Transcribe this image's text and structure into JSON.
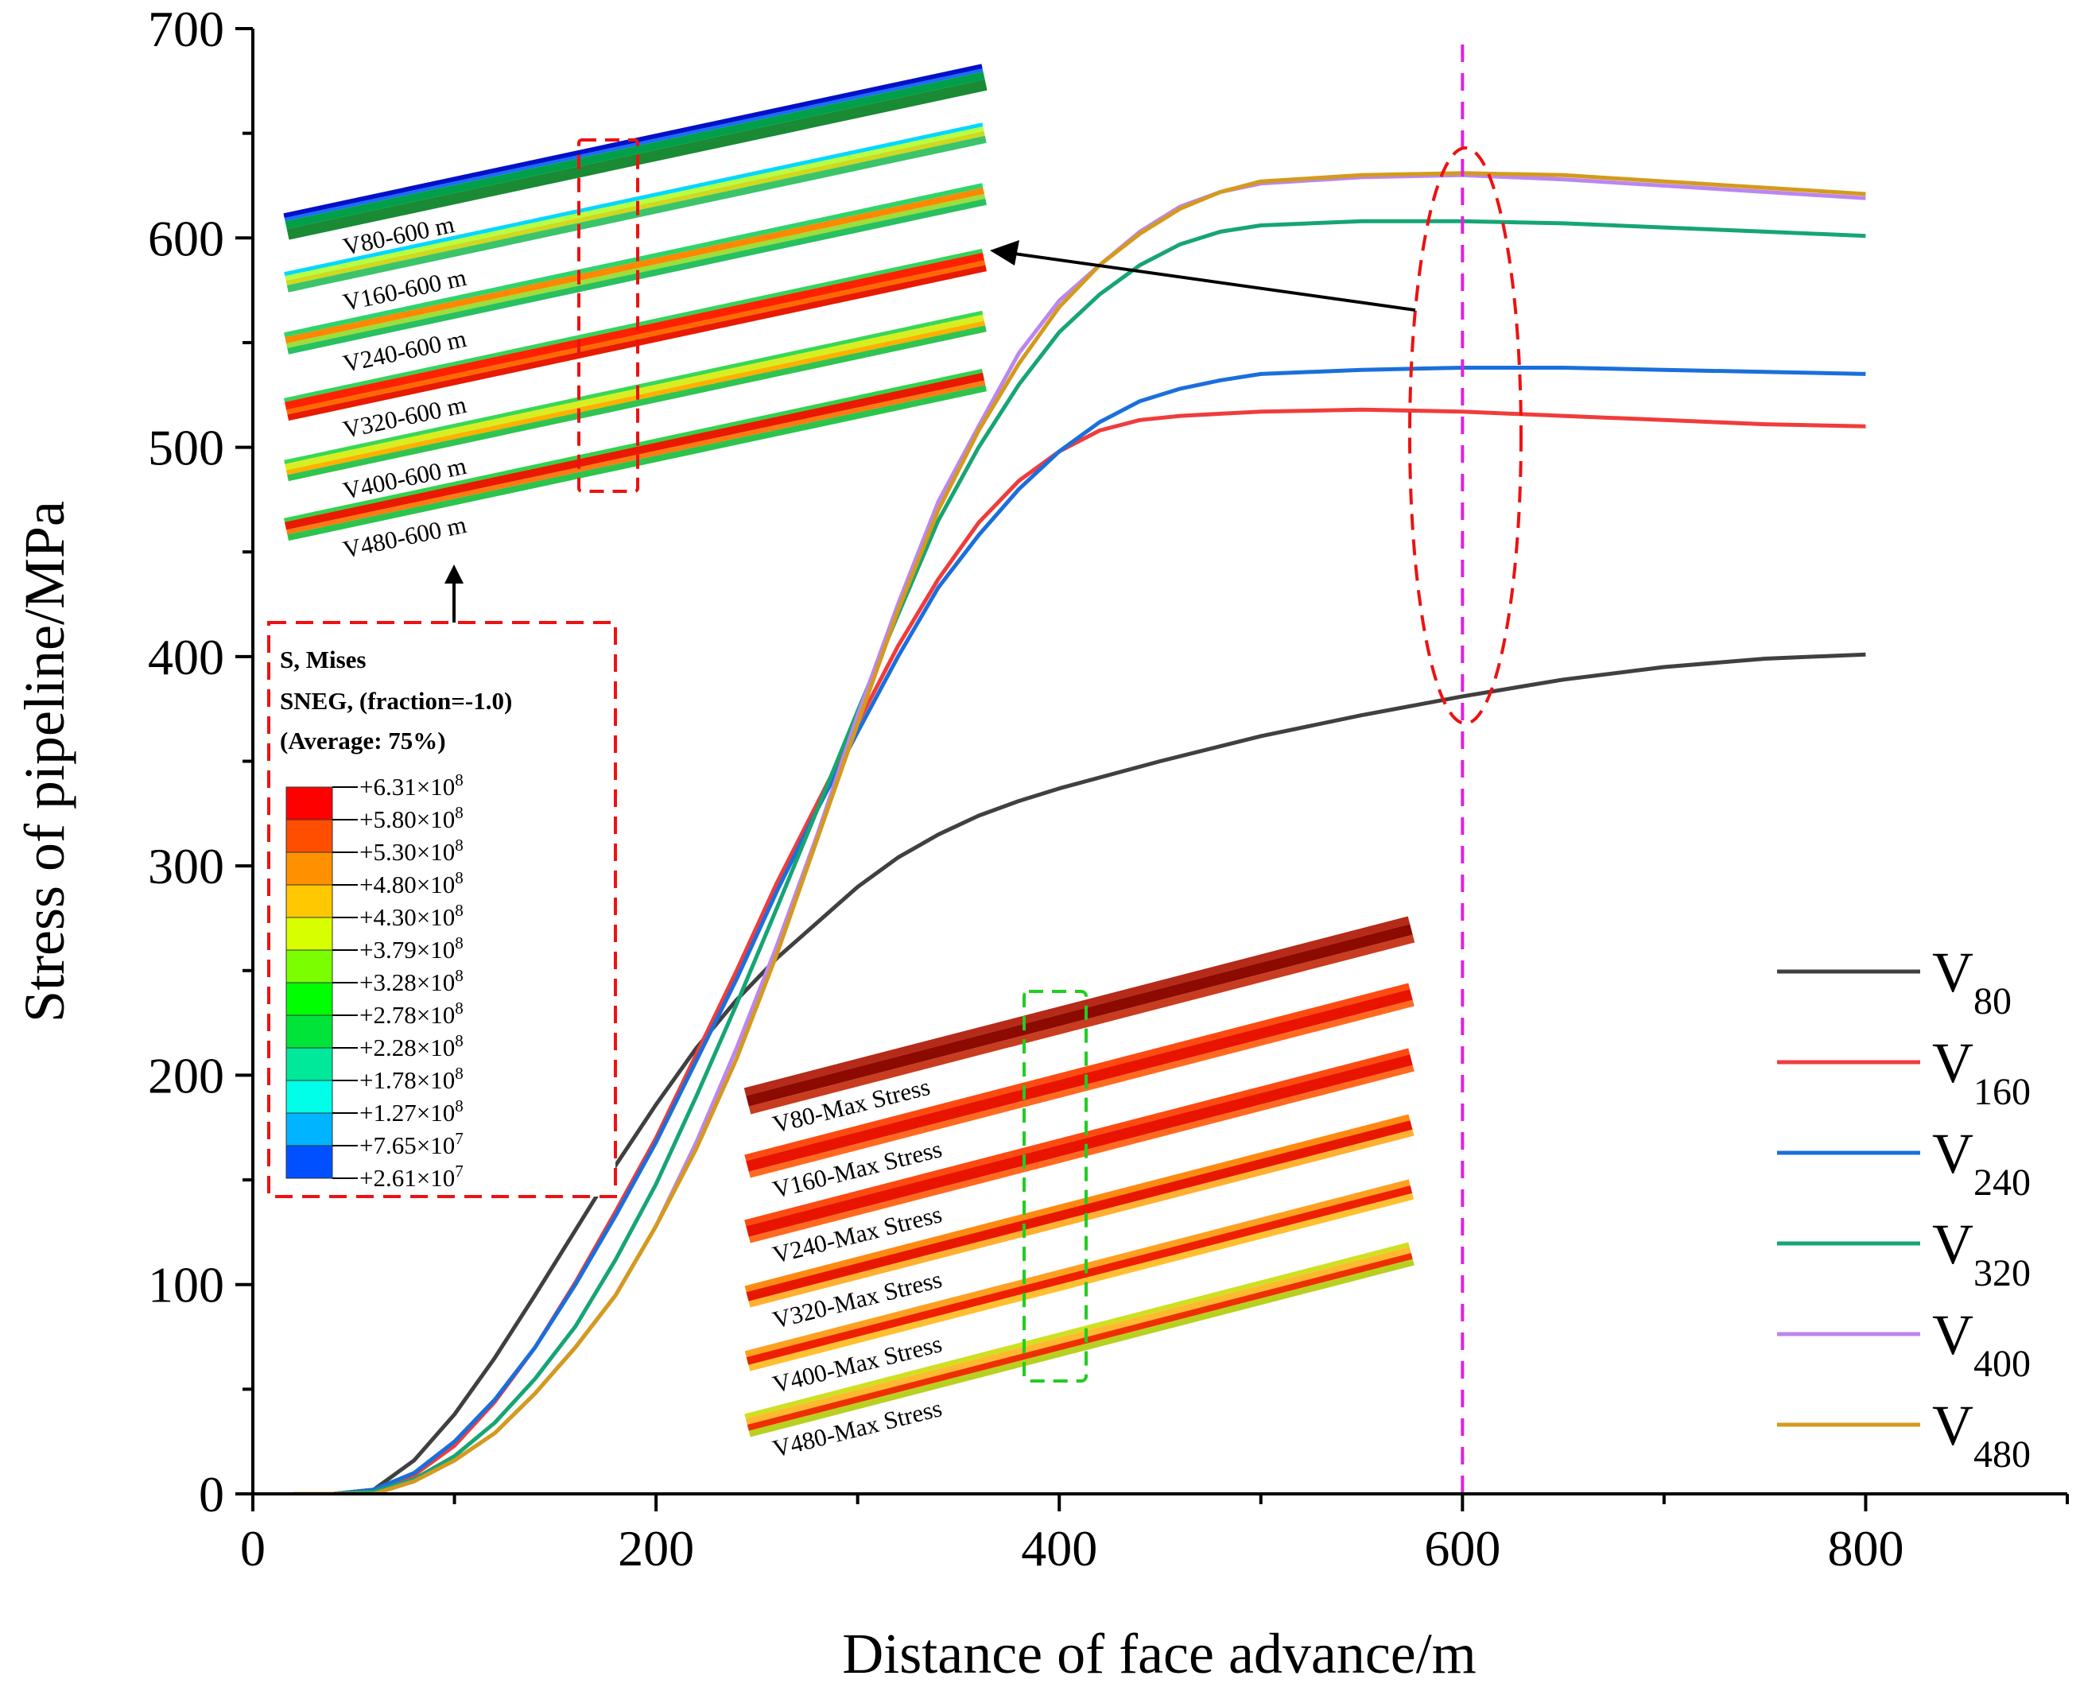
{
  "colors": {
    "v80": "#404040",
    "v160": "#f03c3c",
    "v240": "#1a6fdc",
    "v320": "#16a574",
    "v400": "#bb86f0",
    "v480": "#d49a1c",
    "marker": "#e020e0",
    "red_box": "#ee1111",
    "green_box": "#22cc22"
  },
  "chart_data": {
    "type": "line",
    "xlabel": "Distance of face advance/m",
    "ylabel": "Stress of pipeline/MPa",
    "xlim": [
      0,
      900
    ],
    "ylim": [
      0,
      700
    ],
    "x_ticks": [
      "0",
      "200",
      "400",
      "600",
      "800"
    ],
    "y_ticks": [
      "0",
      "100",
      "200",
      "300",
      "400",
      "500",
      "600",
      "700"
    ],
    "vertical_marker_x": 600,
    "series": [
      {
        "name": "V80",
        "base": "V",
        "sub": "80",
        "key": "v80",
        "x": [
          20,
          40,
          60,
          80,
          100,
          120,
          140,
          160,
          180,
          200,
          220,
          240,
          260,
          280,
          300,
          320,
          340,
          360,
          380,
          400,
          450,
          500,
          550,
          600,
          650,
          700,
          750,
          800
        ],
        "y": [
          0,
          0,
          2,
          16,
          38,
          65,
          95,
          126,
          157,
          186,
          213,
          236,
          256,
          273,
          290,
          304,
          315,
          324,
          331,
          337,
          350,
          362,
          372,
          381,
          389,
          395,
          399,
          401
        ]
      },
      {
        "name": "V160",
        "base": "V",
        "sub": "160",
        "key": "v160",
        "x": [
          20,
          40,
          60,
          80,
          100,
          120,
          140,
          160,
          180,
          200,
          220,
          240,
          260,
          280,
          300,
          320,
          340,
          360,
          380,
          400,
          420,
          440,
          460,
          480,
          500,
          550,
          600,
          650,
          700,
          750,
          800
        ],
        "y": [
          0,
          0,
          2,
          9,
          23,
          44,
          70,
          101,
          135,
          170,
          210,
          250,
          292,
          330,
          368,
          405,
          437,
          464,
          484,
          498,
          508,
          513,
          515,
          516,
          517,
          518,
          517,
          515,
          513,
          511,
          510
        ]
      },
      {
        "name": "V240",
        "base": "V",
        "sub": "240",
        "key": "v240",
        "x": [
          20,
          40,
          60,
          80,
          100,
          120,
          140,
          160,
          180,
          200,
          220,
          240,
          260,
          280,
          300,
          320,
          340,
          360,
          380,
          400,
          420,
          440,
          460,
          480,
          500,
          550,
          600,
          650,
          700,
          750,
          800
        ],
        "y": [
          0,
          0,
          2,
          10,
          25,
          45,
          70,
          100,
          133,
          168,
          207,
          246,
          288,
          327,
          364,
          400,
          433,
          458,
          480,
          498,
          512,
          522,
          528,
          532,
          535,
          537,
          538,
          538,
          537,
          536,
          535
        ]
      },
      {
        "name": "V320",
        "base": "V",
        "sub": "320",
        "key": "v320",
        "x": [
          20,
          40,
          60,
          80,
          100,
          120,
          140,
          160,
          180,
          200,
          220,
          240,
          260,
          280,
          300,
          320,
          340,
          360,
          380,
          400,
          420,
          440,
          460,
          480,
          500,
          550,
          600,
          650,
          700,
          750,
          800
        ],
        "y": [
          0,
          0,
          1,
          7,
          18,
          34,
          55,
          80,
          112,
          148,
          190,
          234,
          280,
          327,
          374,
          420,
          465,
          500,
          530,
          555,
          573,
          587,
          597,
          603,
          606,
          608,
          608,
          607,
          605,
          603,
          601
        ]
      },
      {
        "name": "V400",
        "base": "V",
        "sub": "400",
        "key": "v400",
        "x": [
          20,
          40,
          60,
          80,
          100,
          120,
          140,
          160,
          180,
          200,
          220,
          240,
          260,
          280,
          300,
          320,
          340,
          360,
          380,
          400,
          420,
          440,
          460,
          480,
          500,
          550,
          600,
          650,
          700,
          750,
          800
        ],
        "y": [
          0,
          0,
          0,
          6,
          16,
          29,
          48,
          70,
          95,
          128,
          168,
          213,
          262,
          315,
          372,
          425,
          474,
          510,
          545,
          570,
          587,
          603,
          615,
          622,
          626,
          629,
          630,
          628,
          625,
          622,
          619
        ]
      },
      {
        "name": "V480",
        "base": "V",
        "sub": "480",
        "key": "v480",
        "x": [
          20,
          40,
          60,
          80,
          100,
          120,
          140,
          160,
          180,
          200,
          220,
          240,
          260,
          280,
          300,
          320,
          340,
          360,
          380,
          400,
          420,
          440,
          460,
          480,
          500,
          550,
          600,
          650,
          700,
          750,
          800
        ],
        "y": [
          0,
          0,
          0,
          6,
          16,
          29,
          48,
          70,
          95,
          128,
          165,
          208,
          258,
          313,
          368,
          422,
          470,
          508,
          540,
          567,
          587,
          602,
          614,
          622,
          627,
          630,
          631,
          630,
          627,
          624,
          621
        ]
      }
    ]
  },
  "inset_top": {
    "labels": [
      "V80-600  m",
      "V160-600  m",
      "V240-600  m",
      "V320-600  m",
      "V400-600  m",
      "V480-600  m"
    ]
  },
  "inset_bottom": {
    "labels": [
      "V80-Max Stress",
      "V160-Max  Stress",
      "V240-Max  Stress",
      "V320-Max  Stress",
      "V400-Max  Stress",
      "V480-Max  Stress"
    ]
  },
  "legend_box": {
    "line1": "S, Mises",
    "line2": "SNEG, (fraction=-1.0)",
    "line3": "(Average: 75%)",
    "entries": [
      {
        "mant": "+6.31×10",
        "exp": "8",
        "color": "#ff0000"
      },
      {
        "mant": "+5.80×10",
        "exp": "8",
        "color": "#ff4e00"
      },
      {
        "mant": "+5.30×10",
        "exp": "8",
        "color": "#ff9100"
      },
      {
        "mant": "+4.80×10",
        "exp": "8",
        "color": "#ffc800"
      },
      {
        "mant": "+4.30×10",
        "exp": "8",
        "color": "#d8ff00"
      },
      {
        "mant": "+3.79×10",
        "exp": "8",
        "color": "#7bff00"
      },
      {
        "mant": "+3.28×10",
        "exp": "8",
        "color": "#00ff00"
      },
      {
        "mant": "+2.78×10",
        "exp": "8",
        "color": "#00e43a"
      },
      {
        "mant": "+2.28×10",
        "exp": "8",
        "color": "#00e89a"
      },
      {
        "mant": "+1.78×10",
        "exp": "8",
        "color": "#00ffe8"
      },
      {
        "mant": "+1.27×10",
        "exp": "8",
        "color": "#00b4ff"
      },
      {
        "mant": "+7.65×10",
        "exp": "7",
        "color": "#0050ff"
      },
      {
        "mant": "+2.61×10",
        "exp": "7",
        "color": "#0000ff"
      }
    ]
  }
}
